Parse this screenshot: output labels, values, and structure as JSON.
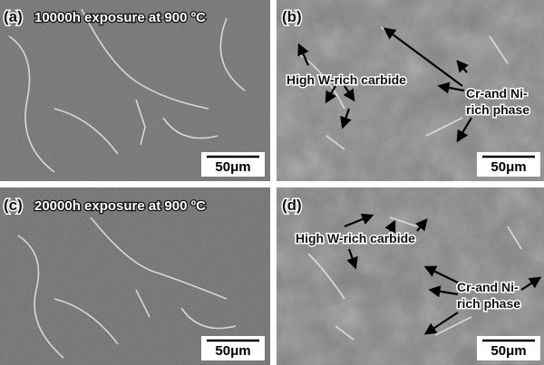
{
  "panels": [
    {
      "label": "(a)",
      "caption": "10000h exposure at 900 ºC",
      "scale_bar": "50μm"
    },
    {
      "label": "(b)",
      "annotations": [
        {
          "lines": [
            "High W-rich carbide"
          ]
        },
        {
          "lines": [
            "Cr-and Ni-",
            "rich phase"
          ]
        }
      ],
      "scale_bar": "50μm"
    },
    {
      "label": "(c)",
      "caption": "20000h exposure at 900 ºC",
      "scale_bar": "50μm"
    },
    {
      "label": "(d)",
      "annotations": [
        {
          "lines": [
            "High W-rich carbide"
          ]
        },
        {
          "lines": [
            "Cr-and Ni-",
            "rich phase"
          ]
        }
      ],
      "scale_bar": "50μm"
    }
  ]
}
